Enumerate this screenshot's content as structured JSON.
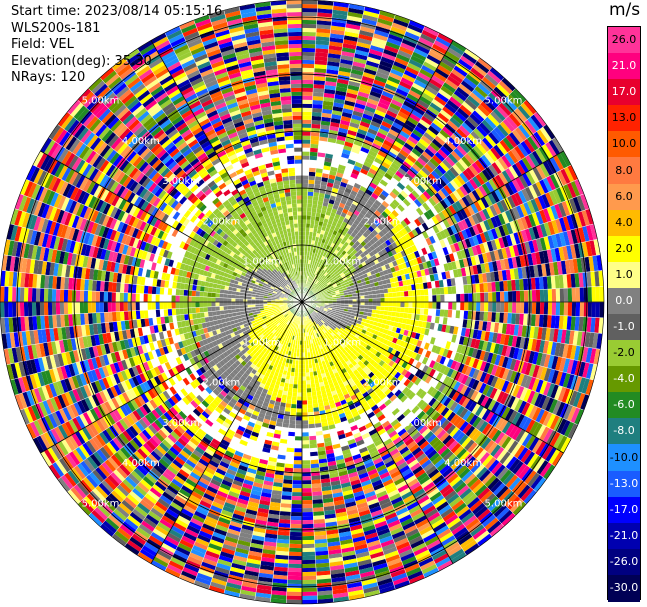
{
  "info": {
    "start_time": "Start time: 2023/08/14 05:15:16",
    "instrument": "WLS200s-181",
    "field": "Field: VEL",
    "elevation": "Elevation(deg): 35.30",
    "nrays": "NRays: 120"
  },
  "colorbar": {
    "unit": "m/s",
    "ticks": [
      "26.0",
      "21.0",
      "17.0",
      "13.0",
      "10.0",
      "8.0",
      "6.0",
      "4.0",
      "2.0",
      "1.0",
      "0.0",
      "-1.0",
      "-2.0",
      "-4.0",
      "-6.0",
      "-8.0",
      "-10.0",
      "-13.0",
      "-17.0",
      "-21.0",
      "-26.0",
      "-30.0"
    ],
    "colors": [
      "#ff3399",
      "#ff007f",
      "#e8002e",
      "#ff2200",
      "#ff5a00",
      "#ff7a40",
      "#ff9a4d",
      "#ffbb00",
      "#ffff00",
      "#ffff88",
      "#808080",
      "#606060",
      "#99cc33",
      "#669900",
      "#228b22",
      "#1f7f7f",
      "#1e90ff",
      "#1a5cff",
      "#0000ff",
      "#0000b0",
      "#000080",
      "#000055"
    ]
  },
  "chart_data": {
    "type": "ppi",
    "field": "VEL",
    "units": "m/s",
    "elevation_deg": 35.3,
    "n_rays": 120,
    "range_rings_km": [
      {
        "label": "1.00km",
        "radius_km": 1.0
      },
      {
        "label": "2.00km",
        "radius_km": 2.0
      },
      {
        "label": "3.00km",
        "radius_km": 3.0
      },
      {
        "label": "4.00km",
        "radius_km": 4.0
      },
      {
        "label": "5.00km",
        "radius_km": 5.0
      }
    ],
    "max_range_km": 5.3,
    "vmin": -30.0,
    "vmax": 30.0
  }
}
